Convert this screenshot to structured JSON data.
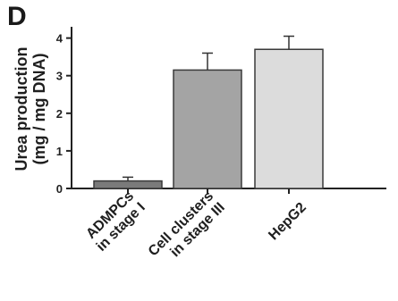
{
  "panel_label": "D",
  "chart_data": {
    "type": "bar",
    "title": "",
    "ylabel_line1": "Urea production",
    "ylabel_line2": "(mg / mg DNA)",
    "xlabel": "",
    "ylim": [
      0,
      4.3
    ],
    "yticks": [
      0,
      1,
      2,
      3,
      4
    ],
    "categories": [
      [
        "ADMPCs",
        "in stage I"
      ],
      [
        "Cell clusters",
        "in stage III"
      ],
      [
        "HepG2"
      ]
    ],
    "values": [
      0.2,
      3.15,
      3.7
    ],
    "errors": [
      0.1,
      0.45,
      0.35
    ],
    "colors": [
      "#7a7a7a",
      "#a4a4a4",
      "#dcdcdc"
    ],
    "grid": false
  }
}
